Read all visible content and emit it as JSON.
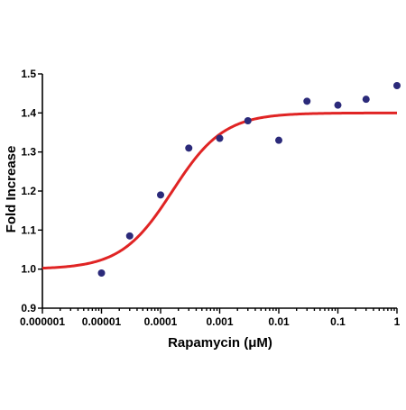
{
  "chart_data": {
    "type": "scatter",
    "xlabel": "Rapamycin (μM)",
    "ylabel": "Fold Increase",
    "xscale": "log",
    "xlim": [
      1e-06,
      1
    ],
    "ylim": [
      0.9,
      1.5
    ],
    "x_ticks": [
      1e-06,
      1e-05,
      0.0001,
      0.001,
      0.01,
      0.1,
      1
    ],
    "x_tick_labels": [
      "0.000001",
      "0.00001",
      "0.0001",
      "0.001",
      "0.01",
      "0.1",
      "1"
    ],
    "y_ticks": [
      0.9,
      1.0,
      1.1,
      1.2,
      1.3,
      1.4,
      1.5
    ],
    "y_tick_labels": [
      "0.9",
      "1.0",
      "1.1",
      "1.2",
      "1.3",
      "1.4",
      "1.5"
    ],
    "grid": false,
    "legend": "none",
    "series": [
      {
        "kind": "points",
        "color": "#2b2a7a",
        "x": [
          1e-05,
          3e-05,
          0.0001,
          0.0003,
          0.001,
          0.003,
          0.01,
          0.03,
          0.1,
          0.3,
          1
        ],
        "y": [
          0.99,
          1.085,
          1.19,
          1.31,
          1.335,
          1.38,
          1.33,
          1.43,
          1.42,
          1.435,
          1.47
        ]
      },
      {
        "kind": "fit-curve",
        "color": "#e02424",
        "model": "sigmoidal dose-response",
        "bottom": 1.0,
        "top": 1.4,
        "log_ec50": -3.8,
        "hill_slope": 1.0
      }
    ]
  }
}
